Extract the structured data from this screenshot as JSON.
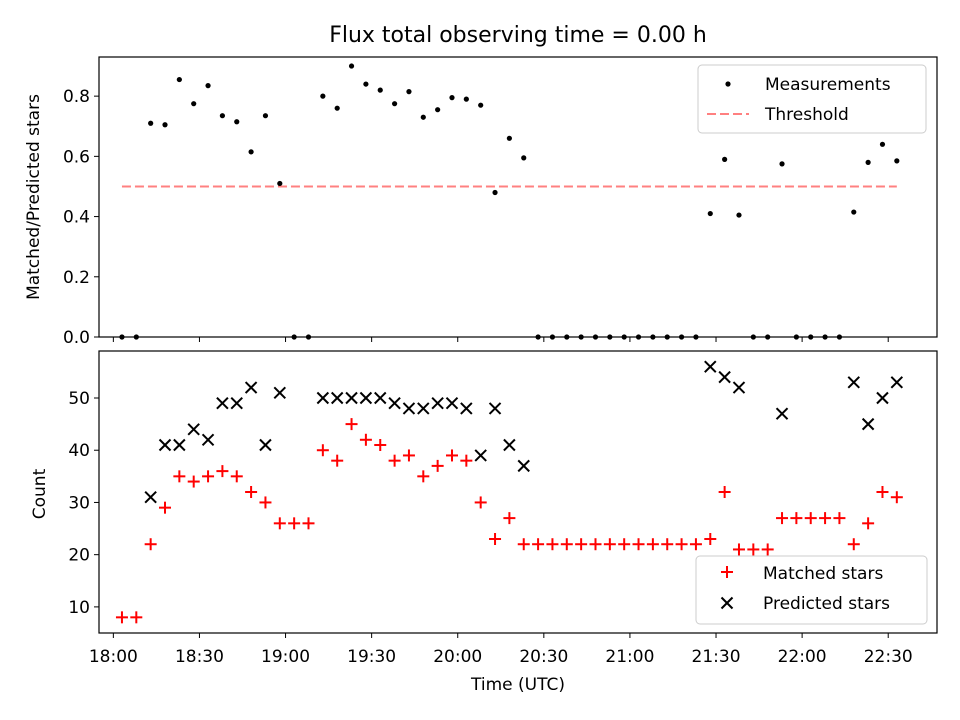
{
  "title": "Flux total observing time = 0.00 h",
  "chart_data": [
    {
      "type": "scatter",
      "ylabel": "Matched/Predicted stars",
      "ylim": [
        0,
        0.93
      ],
      "yticks": [
        0.0,
        0.2,
        0.4,
        0.6,
        0.8
      ],
      "ytick_labels": [
        "0.0",
        "0.2",
        "0.4",
        "0.6",
        "0.8"
      ],
      "xlim": [
        "17:55",
        "22:47"
      ],
      "grid": false,
      "legend": "top-right",
      "threshold": {
        "name": "Threshold",
        "value": 0.5,
        "x_start": "18:03",
        "x_end": "22:33",
        "color": "#ff8080",
        "style": "dashed"
      },
      "series": [
        {
          "name": "Measurements",
          "color": "#000000",
          "marker": "dot",
          "x": [
            "18:03",
            "18:08",
            "18:13",
            "18:18",
            "18:23",
            "18:28",
            "18:33",
            "18:38",
            "18:43",
            "18:48",
            "18:53",
            "18:58",
            "19:03",
            "19:08",
            "19:13",
            "19:18",
            "19:23",
            "19:28",
            "19:33",
            "19:38",
            "19:43",
            "19:48",
            "19:53",
            "19:58",
            "20:03",
            "20:08",
            "20:13",
            "20:18",
            "20:23",
            "20:28",
            "20:33",
            "20:38",
            "20:43",
            "20:48",
            "20:53",
            "20:58",
            "21:03",
            "21:08",
            "21:13",
            "21:18",
            "21:23",
            "21:28",
            "21:33",
            "21:38",
            "21:43",
            "21:48",
            "21:53",
            "21:58",
            "22:03",
            "22:08",
            "22:13",
            "22:18",
            "22:23",
            "22:28",
            "22:33"
          ],
          "y": [
            0.0,
            0.0,
            0.71,
            0.705,
            0.855,
            0.775,
            0.835,
            0.735,
            0.715,
            0.615,
            0.735,
            0.51,
            0.0,
            0.0,
            0.8,
            0.76,
            0.9,
            0.84,
            0.82,
            0.775,
            0.815,
            0.73,
            0.755,
            0.795,
            0.79,
            0.77,
            0.48,
            0.66,
            0.595,
            0.0,
            0.0,
            0.0,
            0.0,
            0.0,
            0.0,
            0.0,
            0.0,
            0.0,
            0.0,
            0.0,
            0.0,
            0.41,
            0.59,
            0.405,
            0.0,
            0.0,
            0.575,
            0.0,
            0.0,
            0.0,
            0.0,
            0.415,
            0.58,
            0.64,
            0.585
          ]
        }
      ]
    },
    {
      "type": "scatter",
      "xlabel": "Time (UTC)",
      "ylabel": "Count",
      "ylim": [
        5,
        59
      ],
      "yticks": [
        10,
        20,
        30,
        40,
        50
      ],
      "ytick_labels": [
        "10",
        "20",
        "30",
        "40",
        "50"
      ],
      "xlim": [
        "17:55",
        "22:47"
      ],
      "xticks": [
        "18:00",
        "18:30",
        "19:00",
        "19:30",
        "20:00",
        "20:30",
        "21:00",
        "21:30",
        "22:00",
        "22:30"
      ],
      "grid": false,
      "legend": "bottom-right",
      "series": [
        {
          "name": "Matched stars",
          "color": "#ff0000",
          "marker": "plus",
          "x": [
            "18:03",
            "18:08",
            "18:13",
            "18:18",
            "18:23",
            "18:28",
            "18:33",
            "18:38",
            "18:43",
            "18:48",
            "18:53",
            "18:58",
            "19:03",
            "19:08",
            "19:13",
            "19:18",
            "19:23",
            "19:28",
            "19:33",
            "19:38",
            "19:43",
            "19:48",
            "19:53",
            "19:58",
            "20:03",
            "20:08",
            "20:13",
            "20:18",
            "20:23",
            "20:28",
            "20:33",
            "20:38",
            "20:43",
            "20:48",
            "20:53",
            "20:58",
            "21:03",
            "21:08",
            "21:13",
            "21:18",
            "21:23",
            "21:28",
            "21:33",
            "21:38",
            "21:43",
            "21:48",
            "21:53",
            "21:58",
            "22:03",
            "22:08",
            "22:13",
            "22:18",
            "22:23",
            "22:28",
            "22:33"
          ],
          "y": [
            8,
            8,
            22,
            29,
            35,
            34,
            35,
            36,
            35,
            32,
            30,
            26,
            26,
            26,
            40,
            38,
            45,
            42,
            41,
            38,
            39,
            35,
            37,
            39,
            38,
            30,
            23,
            27,
            22,
            22,
            22,
            22,
            22,
            22,
            22,
            22,
            22,
            22,
            22,
            22,
            22,
            23,
            32,
            21,
            21,
            21,
            27,
            27,
            27,
            27,
            27,
            22,
            26,
            32,
            31
          ]
        },
        {
          "name": "Predicted stars",
          "color": "#000000",
          "marker": "x",
          "x": [
            "18:13",
            "18:18",
            "18:23",
            "18:28",
            "18:33",
            "18:38",
            "18:43",
            "18:48",
            "18:53",
            "18:58",
            "19:13",
            "19:18",
            "19:23",
            "19:28",
            "19:33",
            "19:38",
            "19:43",
            "19:48",
            "19:53",
            "19:58",
            "20:03",
            "20:08",
            "20:13",
            "20:18",
            "20:23",
            "21:28",
            "21:33",
            "21:38",
            "21:53",
            "22:18",
            "22:23",
            "22:28",
            "22:33"
          ],
          "y": [
            31,
            41,
            41,
            44,
            42,
            49,
            49,
            52,
            41,
            51,
            50,
            50,
            50,
            50,
            50,
            49,
            48,
            48,
            49,
            49,
            48,
            39,
            48,
            41,
            37,
            56,
            54,
            52,
            47,
            53,
            45,
            50,
            53
          ]
        }
      ]
    }
  ]
}
